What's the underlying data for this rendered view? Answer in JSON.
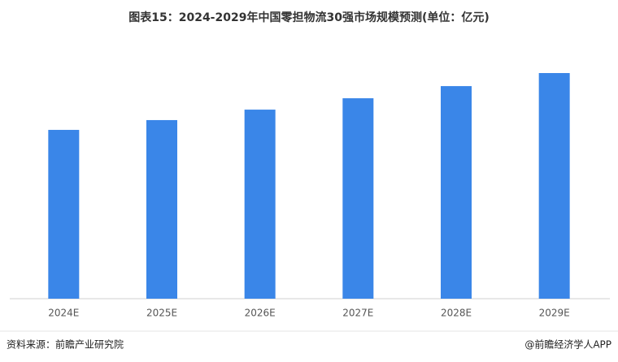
{
  "chart_data": {
    "type": "bar",
    "title": "图表15：2024-2029年中国零担物流30强市场规模预测(单位：亿元)",
    "categories": [
      "2024E",
      "2025E",
      "2026E",
      "2027E",
      "2028E",
      "2029E"
    ],
    "values": [
      1500,
      1587,
      1680,
      1781,
      1889,
      2005
    ],
    "color": "#3a86e8",
    "source": "资料来源：前瞻产业研究院",
    "credit": "@前瞻经济学人APP"
  }
}
